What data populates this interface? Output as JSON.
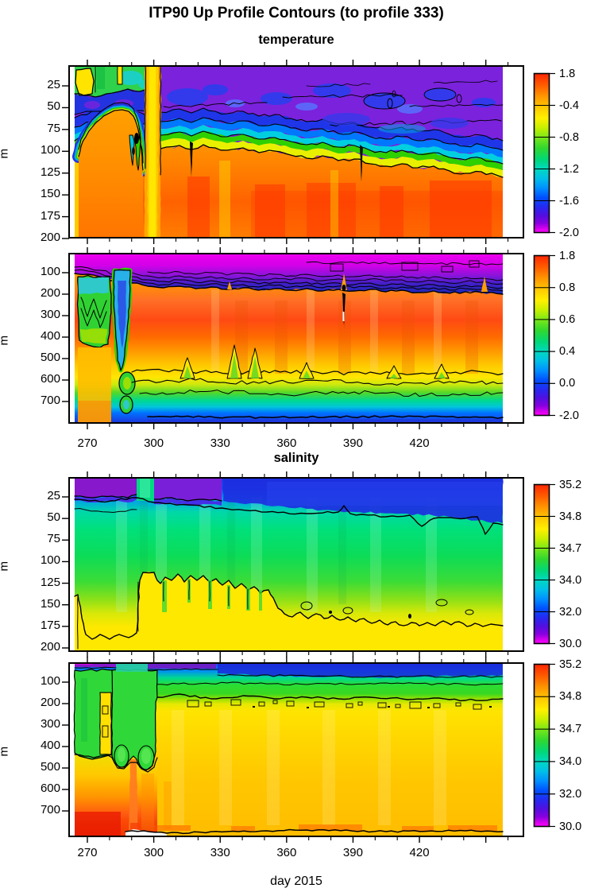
{
  "titles": {
    "main": "ITP90 Up Profile Contours (to profile 333)",
    "temperature": "temperature",
    "salinity": "salinity",
    "xlabel": "day 2015",
    "y_unit": "m"
  },
  "chart_data": [
    {
      "type": "heatmap",
      "id": "temperature-shallow",
      "section": "temperature",
      "x": {
        "label": "day 2015",
        "range": [
          261,
          467
        ],
        "data_range": [
          262,
          458
        ],
        "ticks": [
          270,
          300,
          330,
          360,
          390,
          420
        ],
        "unlabeled_ticks": [
          450
        ],
        "minor_step": 10
      },
      "y": {
        "label": "m",
        "range": [
          1,
          200
        ],
        "ticks": [
          25,
          50,
          75,
          100,
          125,
          150,
          175,
          200
        ],
        "inverted": true
      },
      "colorbar": {
        "orientation": "vertical",
        "tick_labels": [
          "1.8",
          "-0.4",
          "-0.8",
          "-1.2",
          "-1.6",
          "-2.0"
        ],
        "colors_top_to_bottom": [
          "#ff2a00",
          "#ff9100",
          "#ffff00",
          "#30d830",
          "#00c0e8",
          "#0050ff",
          "#5010e0",
          "#ff00ff"
        ]
      },
      "features": [
        {
          "name": "cold surface layer",
          "day_range": [
            300,
            458
          ],
          "depth_m": [
            0,
            90
          ],
          "approx_temp_c": [
            -2.0,
            -1.6
          ]
        },
        {
          "name": "wavy contoured thermocline",
          "day_range": [
            300,
            458
          ],
          "depth_m": [
            85,
            140
          ],
          "approx_temp_c": [
            -1.6,
            0.0
          ]
        },
        {
          "name": "warm deep layer",
          "day_range": [
            262,
            458
          ],
          "depth_m": [
            130,
            200
          ],
          "approx_temp_c": [
            0.5,
            1.8
          ]
        },
        {
          "name": "warm near-surface blob",
          "day_range": [
            266,
            292
          ],
          "depth_m": [
            55,
            200
          ],
          "approx_temp_c": [
            0.5,
            1.8
          ]
        },
        {
          "name": "warm full-depth column",
          "day_range": [
            295,
            303
          ],
          "depth_m": [
            0,
            200
          ],
          "approx_temp_c": [
            -0.4,
            1.0
          ]
        },
        {
          "name": "green/yellow surface patch",
          "day_range": [
            262,
            302
          ],
          "depth_m": [
            0,
            35
          ],
          "approx_temp_c": [
            -1.2,
            -0.4
          ]
        }
      ]
    },
    {
      "type": "heatmap",
      "id": "temperature-deep",
      "section": "temperature",
      "x": {
        "label": "day 2015",
        "range": [
          261,
          467
        ],
        "data_range": [
          262,
          458
        ],
        "ticks": [
          270,
          300,
          330,
          360,
          390,
          420
        ],
        "unlabeled_ticks": [
          450
        ],
        "minor_step": 10
      },
      "y": {
        "label": "m",
        "range": [
          8,
          800
        ],
        "ticks": [
          100,
          200,
          300,
          400,
          500,
          600,
          700
        ],
        "inverted": true
      },
      "colorbar": {
        "orientation": "vertical",
        "tick_labels": [
          "1.8",
          "0.8",
          "0.6",
          "0.4",
          "0.0",
          "-2.0"
        ],
        "colors_top_to_bottom": [
          "#ff2a00",
          "#ff9100",
          "#ffff00",
          "#30d830",
          "#00c0e8",
          "#0050ff",
          "#5010e0",
          "#ff00ff"
        ]
      },
      "features": [
        {
          "name": "very cold surface band",
          "day_range": [
            262,
            458
          ],
          "depth_m": [
            0,
            100
          ],
          "approx_temp_c": [
            -2.0,
            -1.0
          ]
        },
        {
          "name": "dense contour band (thermocline)",
          "day_range": [
            262,
            458
          ],
          "depth_m": [
            60,
            200
          ],
          "approx_temp_c": [
            -1.0,
            0.4
          ]
        },
        {
          "name": "Atlantic water warm core",
          "day_range": [
            262,
            458
          ],
          "depth_m": [
            250,
            430
          ],
          "approx_temp_c": [
            1.2,
            1.8
          ]
        },
        {
          "name": "cool deep water",
          "day_range": [
            295,
            458
          ],
          "depth_m": [
            600,
            800
          ],
          "approx_temp_c": [
            0.0,
            0.4
          ]
        },
        {
          "name": "cold eddy column",
          "day_range": [
            264,
            281
          ],
          "depth_m": [
            110,
            430
          ],
          "approx_temp_c": [
            0.4,
            0.8
          ]
        },
        {
          "name": "cold narrow column",
          "day_range": [
            283,
            292
          ],
          "depth_m": [
            90,
            550
          ],
          "approx_temp_c": [
            0.2,
            0.6
          ]
        }
      ]
    },
    {
      "type": "heatmap",
      "id": "salinity-shallow",
      "section": "salinity",
      "x": {
        "label": "day 2015",
        "range": [
          261,
          467
        ],
        "data_range": [
          262,
          458
        ],
        "ticks": [
          270,
          300,
          330,
          360,
          390,
          420
        ],
        "unlabeled_ticks": [
          450
        ],
        "minor_step": 10
      },
      "y": {
        "label": "m",
        "range": [
          2,
          204
        ],
        "ticks": [
          25,
          50,
          75,
          100,
          125,
          150,
          175,
          200
        ],
        "inverted": true
      },
      "colorbar": {
        "orientation": "vertical",
        "tick_labels": [
          "35.2",
          "34.8",
          "34.7",
          "34.0",
          "32.0",
          "30.0"
        ],
        "colors_top_to_bottom": [
          "#ff2a00",
          "#ff9100",
          "#ffff00",
          "#30d830",
          "#00c0e8",
          "#0050ff",
          "#5010e0",
          "#ff00ff"
        ]
      },
      "features": [
        {
          "name": "fresh surface layer",
          "day_range": [
            262,
            300
          ],
          "depth_m": [
            0,
            25
          ],
          "approx_salinity": [
            30,
            32
          ]
        },
        {
          "name": "surface layer",
          "day_range": [
            300,
            458
          ],
          "depth_m": [
            0,
            45
          ],
          "approx_salinity": [
            32,
            34
          ]
        },
        {
          "name": "halocline interior",
          "day_range": [
            262,
            458
          ],
          "depth_m": [
            45,
            150
          ],
          "approx_salinity": [
            34,
            34.7
          ]
        },
        {
          "name": "salty lower layer",
          "day_range": [
            262,
            458
          ],
          "depth_m": [
            120,
            204
          ],
          "approx_salinity": [
            34.7,
            34.8
          ]
        },
        {
          "name": "fresh column to surface",
          "day_range": [
            294,
            302
          ],
          "depth_m": [
            0,
            30
          ],
          "approx_salinity": [
            34,
            34.4
          ]
        }
      ]
    },
    {
      "type": "heatmap",
      "id": "salinity-deep",
      "section": "salinity",
      "x": {
        "label": "day 2015",
        "range": [
          261,
          467
        ],
        "data_range": [
          262,
          458
        ],
        "ticks": [
          270,
          300,
          330,
          360,
          390,
          420
        ],
        "unlabeled_ticks": [
          450
        ],
        "minor_step": 10
      },
      "y": {
        "label": "m",
        "range": [
          8,
          820
        ],
        "ticks": [
          100,
          200,
          300,
          400,
          500,
          600,
          700
        ],
        "inverted": true
      },
      "colorbar": {
        "orientation": "vertical",
        "tick_labels": [
          "35.2",
          "34.8",
          "34.7",
          "34.0",
          "32.0",
          "30.0"
        ],
        "colors_top_to_bottom": [
          "#ff2a00",
          "#ff9100",
          "#ffff00",
          "#30d830",
          "#00c0e8",
          "#0050ff",
          "#5010e0",
          "#ff00ff"
        ]
      },
      "features": [
        {
          "name": "fresh surface band",
          "day_range": [
            262,
            458
          ],
          "depth_m": [
            0,
            30
          ],
          "approx_salinity": [
            30,
            34
          ]
        },
        {
          "name": "upper halocline",
          "day_range": [
            300,
            458
          ],
          "depth_m": [
            30,
            120
          ],
          "approx_salinity": [
            34,
            34.7
          ]
        },
        {
          "name": "deep fresher eddy region",
          "day_range": [
            262,
            300
          ],
          "depth_m": [
            30,
            450
          ],
          "approx_salinity": [
            34,
            34.7
          ]
        },
        {
          "name": "salty deep water",
          "day_range": [
            300,
            458
          ],
          "depth_m": [
            120,
            800
          ],
          "approx_salinity": [
            34.7,
            34.8
          ]
        },
        {
          "name": "saltiest bottom water",
          "day_range": [
            262,
            300
          ],
          "depth_m": [
            600,
            820
          ],
          "approx_salinity": [
            34.8,
            35.2
          ]
        }
      ]
    }
  ]
}
